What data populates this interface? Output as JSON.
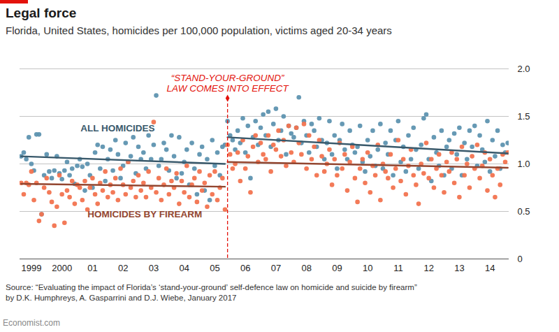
{
  "chart_data": {
    "type": "scatter",
    "title": "Legal force",
    "subtitle": "Florida, United States, homicides per 100,000 population, victims aged 20-34 years",
    "categories": [
      null,
      null,
      null,
      null,
      "1999",
      null,
      null,
      null,
      null,
      null,
      null,
      null,
      null,
      null,
      null,
      null,
      "2000",
      null,
      null,
      null,
      null,
      null,
      null,
      null,
      null,
      null,
      null,
      null,
      "01",
      null,
      null,
      null,
      null,
      null,
      null,
      null,
      null,
      null,
      null,
      null,
      "02",
      null,
      null,
      null,
      null,
      null,
      null,
      null,
      null,
      null,
      null,
      null,
      "03",
      null,
      null,
      null,
      null,
      null,
      null,
      null,
      null,
      null,
      null,
      null,
      "04",
      null,
      null,
      null,
      null,
      null,
      null,
      null,
      null,
      null,
      null,
      null,
      "05",
      null,
      null,
      null,
      null,
      null,
      null,
      null,
      null,
      null,
      null,
      null,
      "06",
      null,
      null,
      null,
      null,
      null,
      null,
      null,
      null,
      null,
      null,
      null,
      "07",
      null,
      null,
      null,
      null,
      null,
      null,
      null,
      null,
      null,
      null,
      null,
      "08",
      null,
      null,
      null,
      null,
      null,
      null,
      null,
      null,
      null,
      null,
      null,
      "09",
      null,
      null,
      null,
      null,
      null,
      null,
      null,
      null,
      null,
      null,
      null,
      "10",
      null,
      null,
      null,
      null,
      null,
      null,
      null,
      null,
      null,
      null,
      null,
      "11",
      null,
      null,
      null,
      null,
      null,
      null,
      null,
      null,
      null,
      null,
      null,
      "12",
      null,
      null,
      null,
      null,
      null,
      null,
      null,
      null,
      null,
      null,
      null,
      "13",
      null,
      null,
      null,
      null,
      null,
      null,
      null,
      null,
      null,
      null,
      null,
      "14",
      null,
      null,
      null,
      null,
      null,
      null,
      null
    ],
    "ylim": [
      0,
      2
    ],
    "yticks": [
      0,
      0.5,
      {
        "value": 1,
        "label": "1.0"
      },
      1.5,
      {
        "value": 2,
        "label": "2.0"
      }
    ],
    "grid": true,
    "series": [
      {
        "name": "ALL HOMICIDES",
        "color": "#5e93b0",
        "marker": "circle",
        "values": [
          1.08,
          1.12,
          1.05,
          1.28,
          1.0,
          0.93,
          1.31,
          1.31,
          0.47,
          0.88,
          1.1,
          0.92,
          0.85,
          0.93,
          1.08,
          0.9,
          0.84,
          0.93,
          1.02,
          0.88,
          0.95,
          0.79,
          0.98,
          1.05,
          0.97,
          0.72,
          1.0,
          0.88,
          0.75,
          1.12,
          1.2,
          0.95,
          1.18,
          0.82,
          1.05,
          1.15,
          0.93,
          1.25,
          1.1,
          0.85,
          0.98,
          1.22,
          1.02,
          1.08,
          1.28,
          0.9,
          1.18,
          1.05,
          1.12,
          0.95,
          1.3,
          1.05,
          1.2,
          1.72,
          0.98,
          1.05,
          1.22,
          1.15,
          0.93,
          1.3,
          1.08,
          0.85,
          1.28,
          0.9,
          1.02,
          1.15,
          0.78,
          1.22,
          0.95,
          0.68,
          1.1,
          1.18,
          0.72,
          1.05,
          0.62,
          1.25,
          0.98,
          1.12,
          0.88,
          1.18,
          1.2,
          1.45,
          1.3,
          1.25,
          1.15,
          1.35,
          1.22,
          1.48,
          1.12,
          1.4,
          0.85,
          1.28,
          1.45,
          1.2,
          1.38,
          1.52,
          1.3,
          1.55,
          1.18,
          1.42,
          1.58,
          1.25,
          1.35,
          1.5,
          1.1,
          1.4,
          1.32,
          1.28,
          1.38,
          1.7,
          1.22,
          1.45,
          1.3,
          1.12,
          1.42,
          1.35,
          1.18,
          1.48,
          1.25,
          1.05,
          1.22,
          1.45,
          1.1,
          1.3,
          0.95,
          1.25,
          1.42,
          1.15,
          1.05,
          1.35,
          1.2,
          1.12,
          1.18,
          1.4,
          1.02,
          0.92,
          1.25,
          1.08,
          1.35,
          0.98,
          1.15,
          1.42,
          0.95,
          1.22,
          1.1,
          1.35,
          0.88,
          1.25,
          1.45,
          1.02,
          1.18,
          0.92,
          1.3,
          1.05,
          1.38,
          1.15,
          0.95,
          1.2,
          1.48,
          1.52,
          1.05,
          0.82,
          1.28,
          1.12,
          0.98,
          1.35,
          0.88,
          1.18,
          1.25,
          0.95,
          1.32,
          1.1,
          1.38,
          0.88,
          1.22,
          1.05,
          1.35,
          1.18,
          1.4,
          0.98,
          1.3,
          1.15,
          1.02,
          1.45,
          0.92,
          1.25,
          1.08,
          1.35,
          0.95,
          1.2,
          1.12,
          1.22
        ],
        "trend": [
          {
            "start": 0,
            "end": 80,
            "values": [
              1.08,
              1.0
            ]
          },
          {
            "start": 81,
            "end": 191,
            "values": [
              1.28,
              1.11
            ]
          }
        ]
      },
      {
        "name": "HOMICIDES BY FIREARM",
        "color": "#f2734f",
        "marker": "circle",
        "values": [
          0.8,
          0.68,
          0.8,
          0.78,
          0.92,
          0.62,
          0.8,
          0.4,
          0.47,
          0.75,
          0.85,
          0.7,
          0.6,
          0.35,
          0.55,
          0.88,
          0.68,
          0.38,
          0.72,
          0.65,
          0.82,
          0.58,
          0.78,
          0.75,
          0.62,
          0.82,
          0.52,
          0.75,
          0.85,
          0.68,
          0.58,
          0.8,
          0.72,
          0.92,
          0.65,
          0.78,
          0.7,
          0.85,
          0.62,
          0.95,
          0.78,
          0.68,
          1.02,
          0.75,
          0.82,
          0.65,
          0.88,
          0.72,
          0.8,
          0.65,
          0.92,
          0.75,
          1.44,
          0.7,
          0.85,
          0.62,
          0.78,
          0.95,
          0.68,
          0.82,
          0.75,
          0.9,
          0.58,
          0.82,
          0.7,
          0.98,
          0.65,
          0.78,
          0.85,
          0.6,
          0.92,
          0.72,
          0.8,
          0.55,
          0.88,
          0.68,
          0.92,
          0.62,
          0.75,
          0.85,
          0.52,
          1.2,
          1.1,
          0.95,
          1.0,
          1.12,
          0.82,
          1.25,
          0.95,
          1.08,
          0.7,
          1.18,
          1.3,
          1.02,
          1.22,
          1.1,
          1.05,
          1.3,
          0.92,
          1.2,
          1.15,
          1.35,
          1.08,
          1.25,
          0.98,
          1.4,
          1.12,
          1.02,
          1.38,
          1.22,
          1.1,
          1.42,
          0.95,
          1.3,
          1.05,
          1.18,
          0.88,
          1.25,
          1.08,
          0.92,
          1.0,
          1.15,
          0.78,
          1.05,
          0.88,
          1.22,
          0.95,
          1.1,
          0.72,
          1.02,
          1.18,
          0.85,
          0.6,
          0.95,
          1.05,
          0.8,
          1.12,
          0.7,
          0.98,
          0.88,
          1.2,
          0.62,
          1.0,
          0.92,
          0.85,
          1.1,
          0.75,
          0.95,
          1.25,
          0.82,
          1.05,
          0.68,
          0.98,
          1.15,
          0.88,
          0.78,
          0.58,
          1.0,
          0.9,
          1.22,
          0.85,
          1.05,
          0.75,
          0.95,
          1.1,
          0.88,
          0.7,
          1.02,
          0.92,
          1.12,
          0.8,
          1.05,
          0.65,
          1.18,
          0.88,
          1.0,
          0.75,
          1.08,
          0.95,
          1.2,
          0.85,
          0.98,
          1.12,
          0.72,
          1.05,
          0.88,
          0.65,
          0.95,
          0.78,
          1.1,
          1.02,
          1.12
        ],
        "trend": [
          {
            "start": 0,
            "end": 80,
            "values": [
              0.79,
              0.76
            ]
          },
          {
            "start": 81,
            "end": 191,
            "values": [
              1.02,
              0.96
            ]
          }
        ]
      }
    ],
    "annotation": {
      "text": [
        "“STAND-YOUR-GROUND”",
        "LAW COMES INTO EFFECT"
      ],
      "x": 81,
      "line_style": "dashed",
      "color": "#e3120b"
    },
    "source": [
      "Source: “Evaluating the impact of Florida’s ‘stand-your-ground’ self-defence law on homicide and suicide by firearm”",
      "by D.K. Humphreys, A. Gasparrini and D.J. Wiebe, January 2017"
    ],
    "footer": "Economist.com"
  }
}
